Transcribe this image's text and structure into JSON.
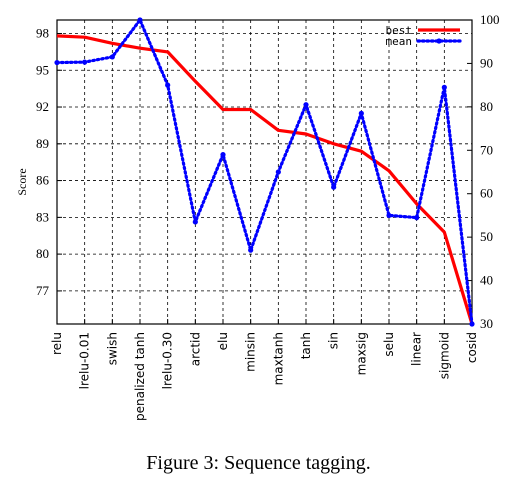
{
  "caption": "Figure 3: Sequence tagging.",
  "chart_data": {
    "type": "line",
    "ylabel": "Score",
    "categories": [
      "relu",
      "lrelu-0.01",
      "swish",
      "penalized tanh",
      "lrelu-0.30",
      "arctid",
      "elu",
      "minsin",
      "maxtanh",
      "tanh",
      "sin",
      "maxsig",
      "selu",
      "linear",
      "sigmoid",
      "cosid"
    ],
    "y_left": {
      "ticks": [
        77,
        80,
        83,
        86,
        89,
        92,
        95,
        98
      ],
      "range": [
        74.3,
        99.1
      ]
    },
    "y_right": {
      "ticks": [
        30,
        40,
        50,
        60,
        70,
        80,
        90,
        100
      ],
      "range": [
        30,
        100
      ]
    },
    "grid": true,
    "legend_position": "top-right",
    "series": [
      {
        "name": "best",
        "axis": "left",
        "color": "#ff0000",
        "style": "solid",
        "values": [
          97.8,
          97.7,
          97.2,
          96.8,
          96.5,
          94.1,
          91.8,
          91.8,
          90.1,
          89.8,
          89.0,
          88.4,
          86.8,
          84.1,
          81.8,
          74.3
        ]
      },
      {
        "name": "mean",
        "axis": "right",
        "color": "#0000ff",
        "style": "dotted",
        "values": [
          90.2,
          90.3,
          91.5,
          100.0,
          85.0,
          53.5,
          69.0,
          47.0,
          65.0,
          80.5,
          61.5,
          78.5,
          55.0,
          54.5,
          84.5,
          29.5
        ]
      }
    ]
  }
}
